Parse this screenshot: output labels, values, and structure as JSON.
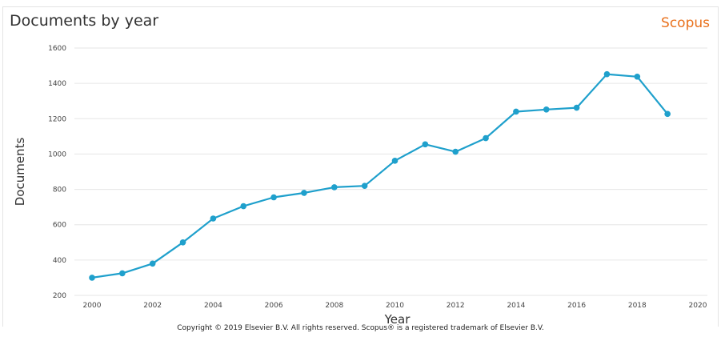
{
  "header": {
    "title": "Documents by year",
    "brand": "Scopus",
    "brand_color": "#e9711c"
  },
  "footer": {
    "copyright": "Copyright © 2019 Elsevier B.V. All rights reserved. Scopus® is a registered trademark of Elsevier B.V."
  },
  "chart_data": {
    "type": "line",
    "title": "Documents by year",
    "xlabel": "Year",
    "ylabel": "Documents",
    "xlim": [
      2000,
      2020
    ],
    "ylim": [
      200,
      1600
    ],
    "xticks": [
      2000,
      2002,
      2004,
      2006,
      2008,
      2010,
      2012,
      2014,
      2016,
      2018,
      2020
    ],
    "yticks": [
      200,
      400,
      600,
      800,
      1000,
      1200,
      1400,
      1600
    ],
    "grid": true,
    "legend": "none",
    "series": [
      {
        "color": "#1fa0cc",
        "x": [
          2000,
          2001,
          2002,
          2003,
          2004,
          2005,
          2006,
          2007,
          2008,
          2009,
          2010,
          2011,
          2012,
          2013,
          2014,
          2015,
          2016,
          2017,
          2018,
          2019
        ],
        "y": [
          300,
          325,
          380,
          500,
          635,
          705,
          755,
          780,
          812,
          820,
          962,
          1055,
          1013,
          1090,
          1240,
          1252,
          1262,
          1452,
          1438,
          1227
        ]
      }
    ]
  }
}
